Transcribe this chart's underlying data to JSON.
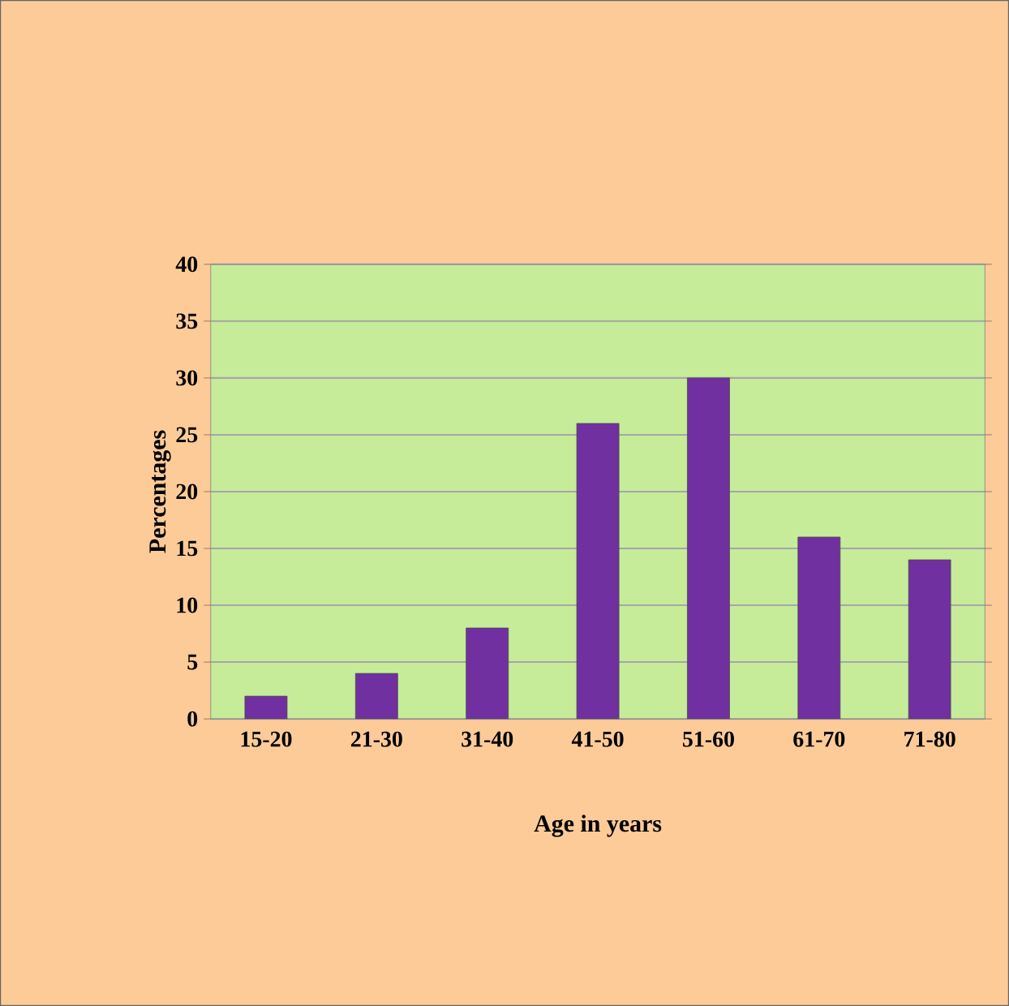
{
  "chart_data": {
    "type": "bar",
    "xlabel": "Age in years",
    "ylabel": "Percentages",
    "categories": [
      "15-20",
      "21-30",
      "31-40",
      "41-50",
      "51-60",
      "61-70",
      "71-80"
    ],
    "values": [
      2,
      4,
      8,
      26,
      30,
      16,
      14
    ],
    "color": "#7030a0",
    "ylim": [
      0,
      40
    ],
    "yticks": [
      0,
      5,
      10,
      15,
      20,
      25,
      30,
      35,
      40
    ],
    "grid": "y"
  }
}
